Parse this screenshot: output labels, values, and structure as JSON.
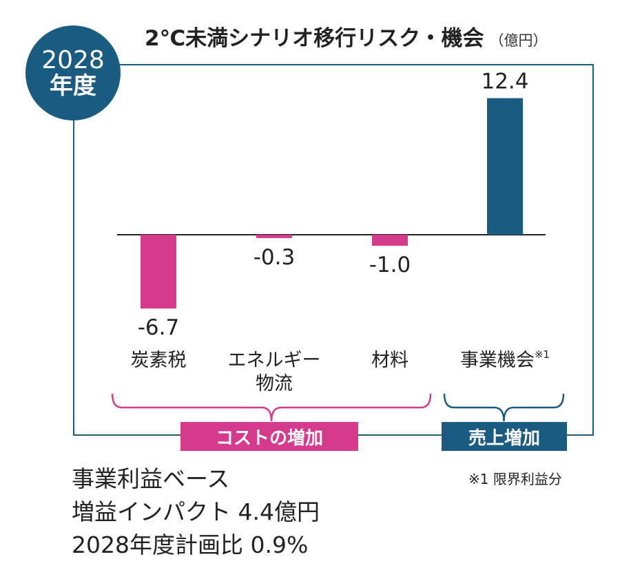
{
  "badge": {
    "year": "2028",
    "label": "年度"
  },
  "title": "2℃未満シナリオ移行リスク・機会",
  "unit": "（億円）",
  "chart_data": {
    "type": "bar",
    "categories": [
      "炭素税",
      "エネルギー物流",
      "材料",
      "事業機会"
    ],
    "values": [
      -6.7,
      -0.3,
      -1.0,
      12.4
    ],
    "value_labels": [
      "-6.7",
      "-0.3",
      "-1.0",
      "12.4"
    ],
    "category_lines": [
      [
        "炭素税"
      ],
      [
        "エネルギー",
        "物流"
      ],
      [
        "材料"
      ],
      [
        "事業機会"
      ]
    ],
    "category_superscripts": [
      "",
      "",
      "",
      "※1"
    ],
    "colors": [
      "#d63a8d",
      "#d63a8d",
      "#d63a8d",
      "#1a5b82"
    ],
    "ylim": [
      -8,
      15
    ],
    "grid": false,
    "groups": [
      {
        "label": "コストの増加",
        "color": "#d63a8d",
        "categories": [
          0,
          1,
          2
        ]
      },
      {
        "label": "売上増加",
        "color": "#1a5b82",
        "categories": [
          3
        ]
      }
    ]
  },
  "footnote": "※1 限界利益分",
  "summary": {
    "line1": "事業利益ベース",
    "line2": "増益インパクト 4.4億円",
    "line3": "2028年度計画比 0.9%"
  }
}
